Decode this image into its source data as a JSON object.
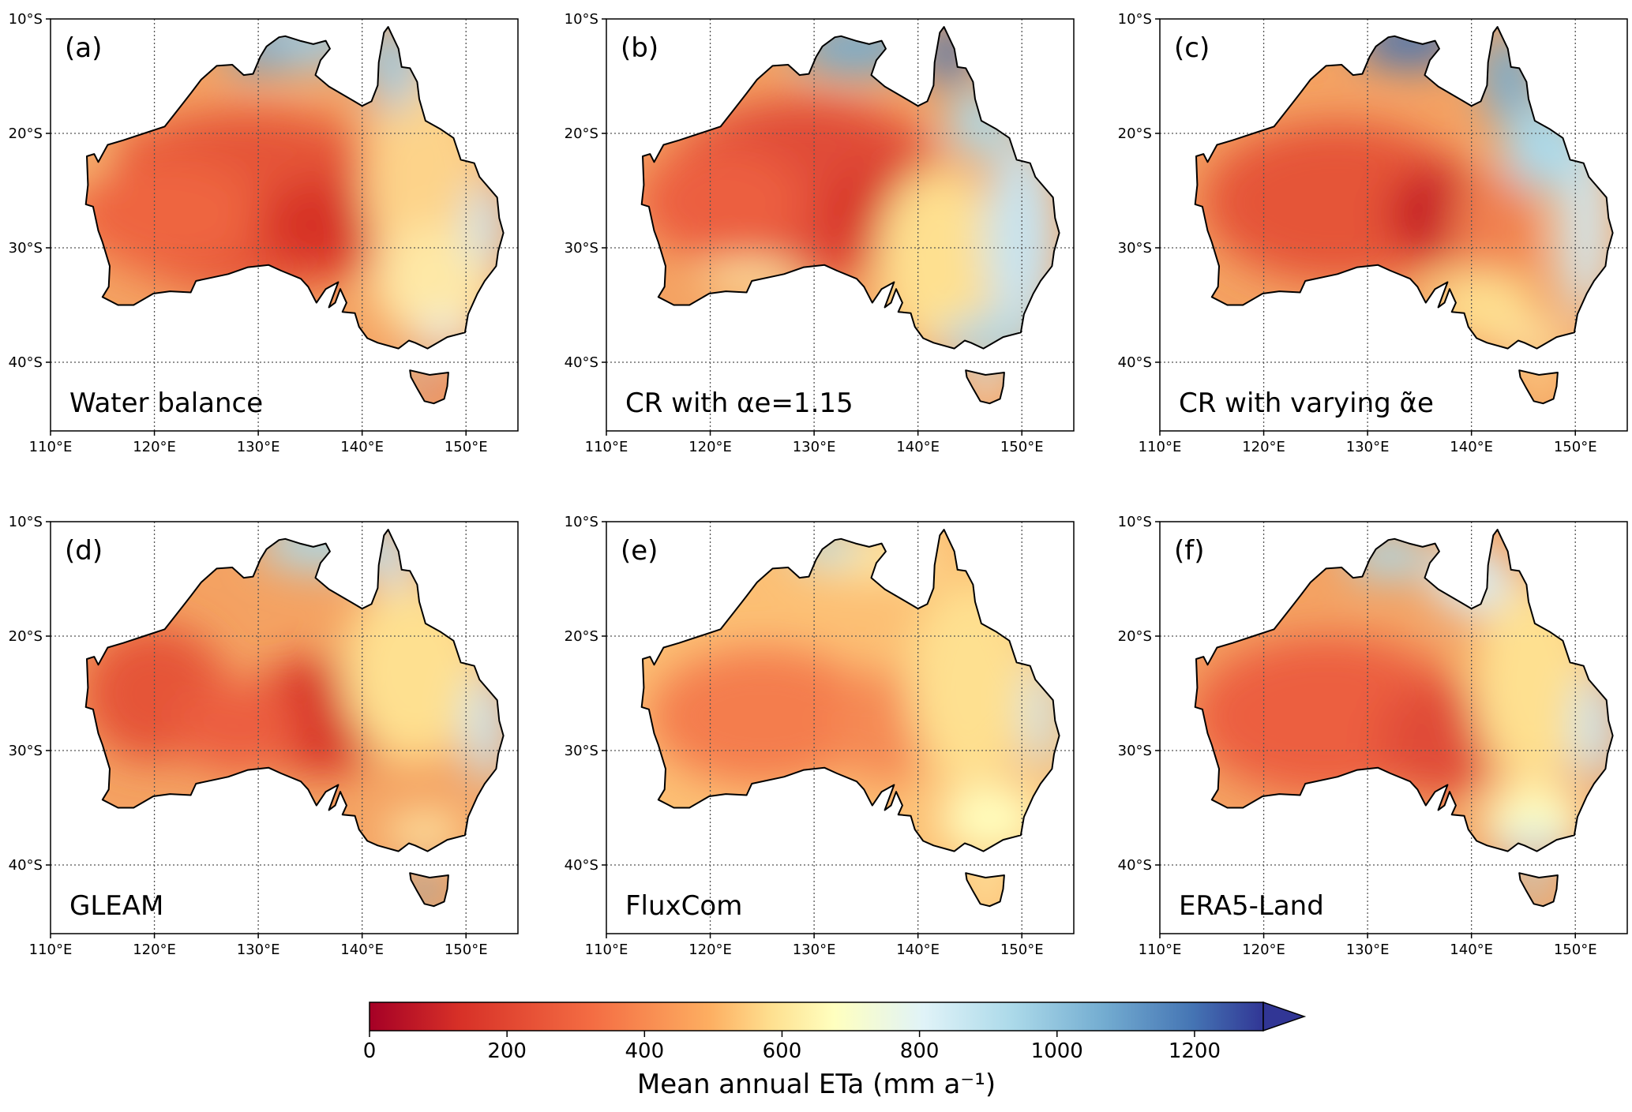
{
  "lon_ticks": [
    "110°E",
    "120°E",
    "130°E",
    "140°E",
    "150°E"
  ],
  "lat_ticks": [
    "10°S",
    "20°S",
    "30°S",
    "40°S"
  ],
  "panels": [
    {
      "tag": "(a)",
      "label": "Water balance",
      "dataset": "Water balance"
    },
    {
      "tag": "(b)",
      "label": "CR with αe=1.15",
      "dataset": "CR with alpha_e=1.15"
    },
    {
      "tag": "(c)",
      "label": "CR with varying α̃e",
      "dataset": "CR with varying alpha_e"
    },
    {
      "tag": "(d)",
      "label": "GLEAM",
      "dataset": "GLEAM"
    },
    {
      "tag": "(e)",
      "label": "FluxCom",
      "dataset": "FluxCom"
    },
    {
      "tag": "(f)",
      "label": "ERA5-Land",
      "dataset": "ERA5-Land"
    }
  ],
  "colorbar": {
    "label": "Mean annual ETa (mm a⁻¹)",
    "ticks": [
      "0",
      "200",
      "400",
      "600",
      "800",
      "1000",
      "1200"
    ],
    "range": [
      0,
      1300
    ],
    "colormap": "RdYlBu",
    "extend": "max"
  },
  "chart_data": {
    "type": "map",
    "region": "Australia",
    "variable": "Mean annual ETa",
    "units": "mm a⁻¹",
    "lon_range": [
      110,
      155
    ],
    "lat_range": [
      -46,
      -10
    ],
    "scale": [
      0,
      1300
    ]
  },
  "colors": {
    "dry": "#c61a27",
    "mid": "#fef8b8",
    "wet": "#2b3990",
    "coast": "#000000"
  }
}
